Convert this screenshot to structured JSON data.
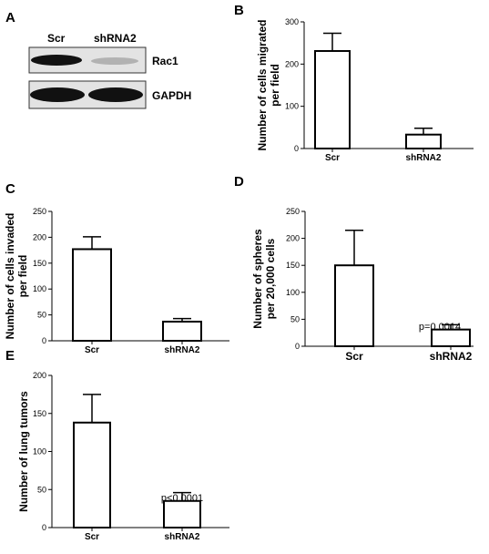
{
  "panels": {
    "a": {
      "letter": "A",
      "lanes": [
        "Scr",
        "shRNA2"
      ],
      "bands": [
        "Rac1",
        "GAPDH"
      ]
    },
    "b": {
      "letter": "B"
    },
    "c": {
      "letter": "C"
    },
    "d": {
      "letter": "D"
    },
    "e": {
      "letter": "E"
    }
  },
  "chart_data": [
    {
      "id": "B",
      "type": "bar",
      "categories": [
        "Scr",
        "shRNA2"
      ],
      "values": [
        231,
        33
      ],
      "errors": [
        42,
        15
      ],
      "ylabel": "Number of cells migrated\nper field",
      "ylim": [
        0,
        300
      ],
      "yticks": [
        0,
        100,
        200,
        300
      ],
      "annotation": ""
    },
    {
      "id": "C",
      "type": "bar",
      "categories": [
        "Scr",
        "shRNA2"
      ],
      "values": [
        177,
        37
      ],
      "errors": [
        24,
        6
      ],
      "ylabel": "Number of cells invaded\nper field",
      "ylim": [
        0,
        250
      ],
      "yticks": [
        0,
        50,
        100,
        150,
        200,
        250
      ],
      "annotation": ""
    },
    {
      "id": "D",
      "type": "bar",
      "categories": [
        "Scr",
        "shRNA2"
      ],
      "values": [
        150,
        31
      ],
      "errors": [
        65,
        9
      ],
      "ylabel": "Number of spheres\nper 20,000 cells",
      "ylim": [
        0,
        250
      ],
      "yticks": [
        0,
        50,
        100,
        150,
        200,
        250
      ],
      "annotation": "p=0.0014"
    },
    {
      "id": "E",
      "type": "bar",
      "categories": [
        "Scr",
        "shRNA2"
      ],
      "values": [
        138,
        35
      ],
      "errors": [
        37,
        11
      ],
      "ylabel": "Number of lung tumors",
      "ylim": [
        0,
        200
      ],
      "yticks": [
        0,
        50,
        100,
        150,
        200
      ],
      "annotation": "p<0.0001"
    }
  ]
}
